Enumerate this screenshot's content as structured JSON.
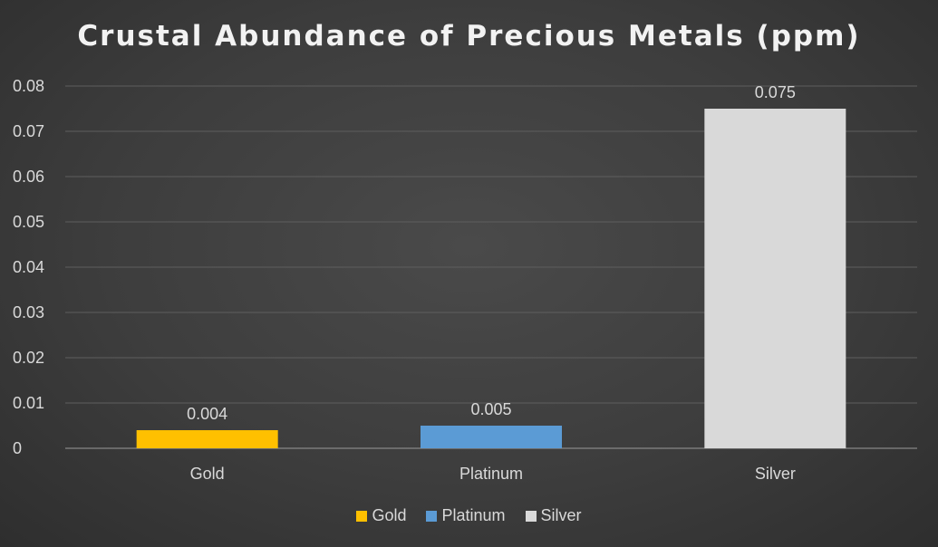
{
  "chart_data": {
    "type": "bar",
    "title": "Crustal Abundance of Precious Metals (ppm)",
    "xlabel": "",
    "ylabel": "",
    "categories": [
      "Gold",
      "Platinum",
      "Silver"
    ],
    "values": [
      0.004,
      0.005,
      0.075
    ],
    "data_labels": [
      "0.004",
      "0.005",
      "0.075"
    ],
    "colors": [
      "#FFC000",
      "#5B9BD5",
      "#D9D9D9"
    ],
    "ylim": [
      0,
      0.08
    ],
    "yticks": [
      "0",
      "0.01",
      "0.02",
      "0.03",
      "0.04",
      "0.05",
      "0.06",
      "0.07",
      "0.08"
    ],
    "grid": true,
    "legend": {
      "position": "bottom",
      "entries": [
        "Gold",
        "Platinum",
        "Silver"
      ]
    }
  }
}
